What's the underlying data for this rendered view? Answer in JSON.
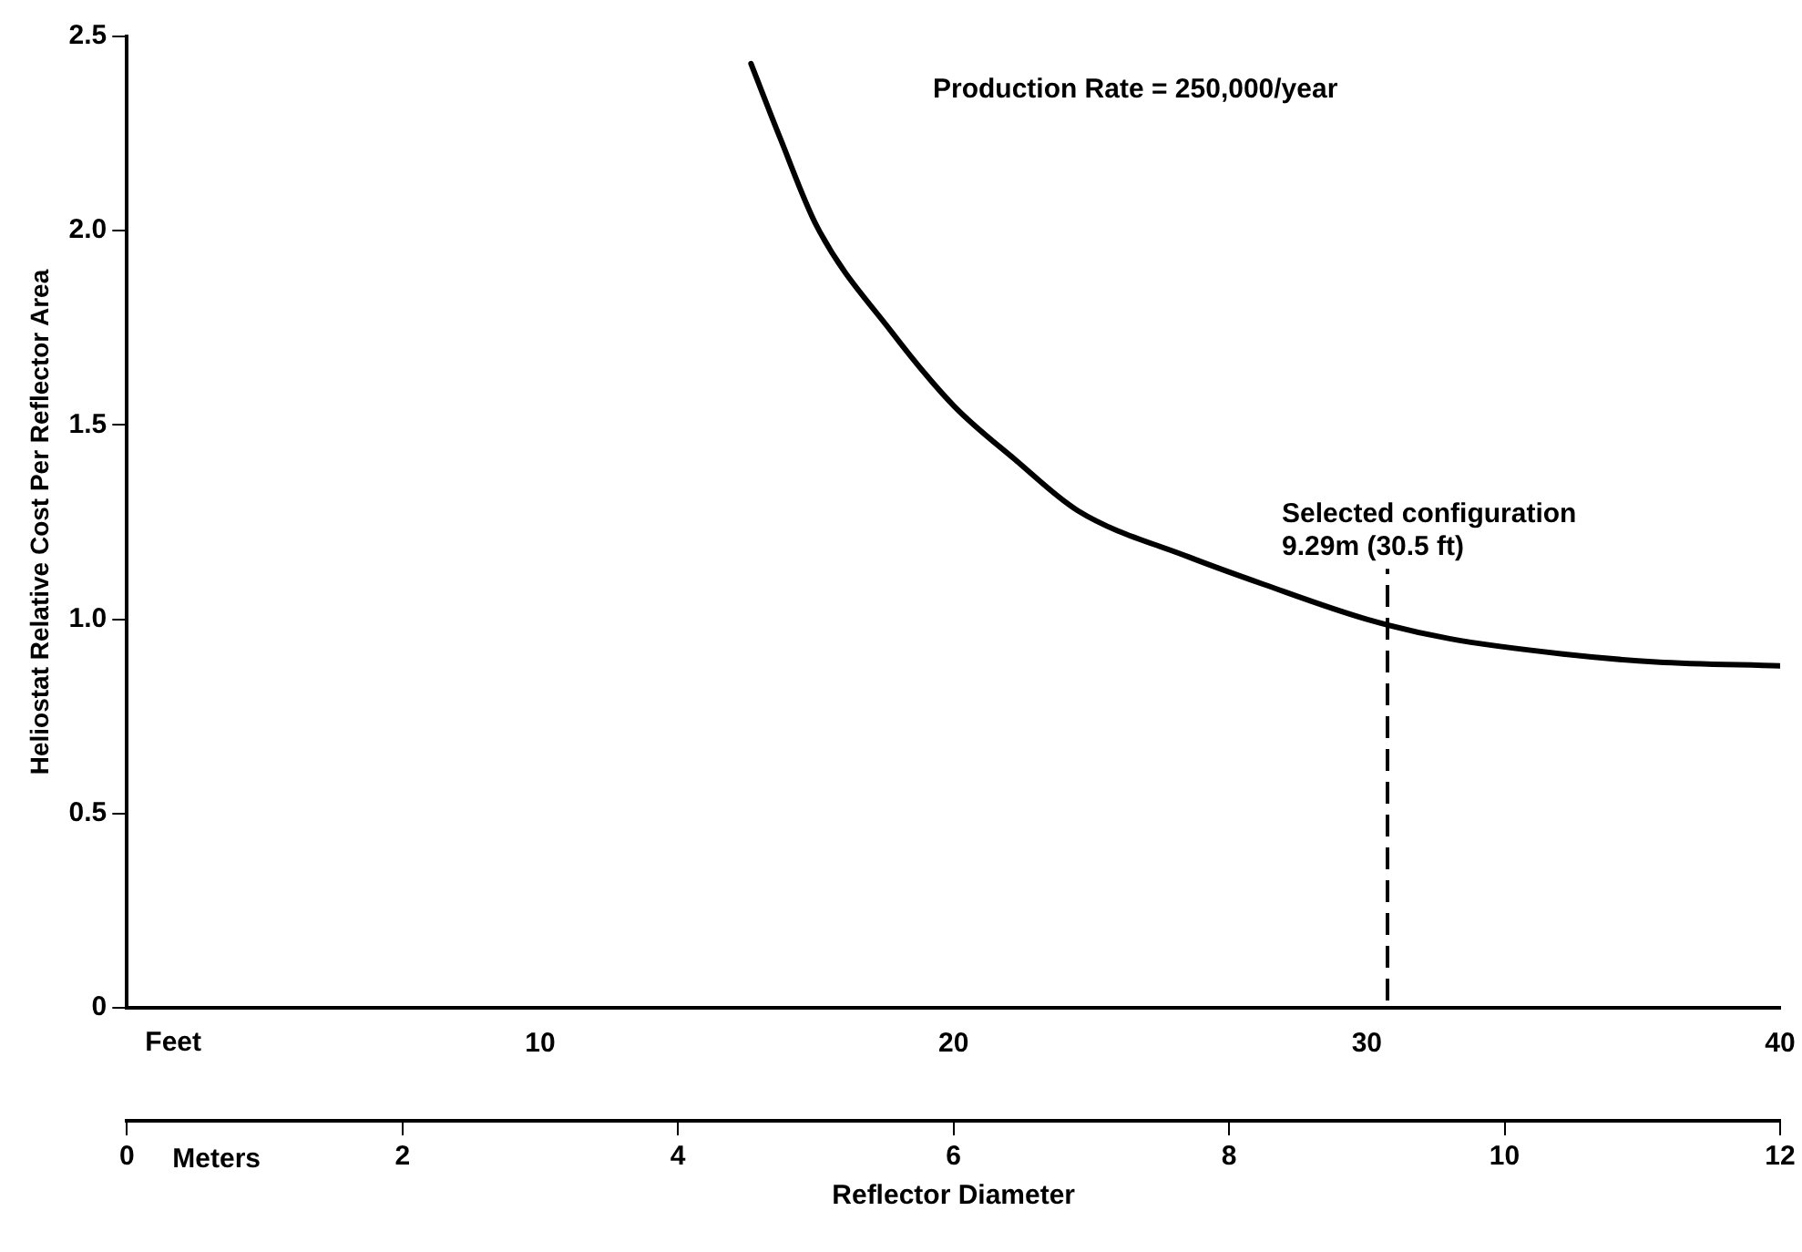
{
  "chart_data": {
    "type": "line",
    "xlabel": "Feet",
    "x2label": "Meters",
    "ylabel": "Heliostat Relative Cost Per Reflector Area",
    "annotations": [
      "Production Rate = 250,000/year",
      "Reflector Diameter"
    ],
    "series": [
      {
        "color": "#000000",
        "x": [
          15.1,
          15.8,
          16.7,
          18.5,
          20,
          21.5,
          23,
          25.7,
          27.5,
          30,
          32,
          34.8,
          37,
          40
        ],
        "values": [
          2.43,
          2.24,
          2.01,
          1.74,
          1.55,
          1.41,
          1.28,
          1.16,
          1.09,
          1.0,
          0.95,
          0.91,
          0.89,
          0.88
        ]
      }
    ],
    "xlim": [
      0,
      40
    ],
    "xticks": [
      10,
      20,
      30,
      40
    ],
    "x2lim": [
      0,
      12
    ],
    "x2ticks": [
      0,
      2,
      4,
      6,
      8,
      10,
      12
    ],
    "ylim": [
      0,
      2.5
    ],
    "yticks": [
      0,
      0.5,
      {
        "value": 1,
        "label": "1.0"
      },
      1.5,
      {
        "value": 2,
        "label": "2.0"
      },
      2.5
    ],
    "grid": false,
    "legend": false,
    "marker": "none",
    "line_style": "solid",
    "ref_lines": [
      {
        "axis": "x",
        "value": 30.5,
        "label": "Selected configuration\n9.29m (30.5 ft)",
        "line_style": "dashed",
        "color": "#000000"
      }
    ]
  }
}
